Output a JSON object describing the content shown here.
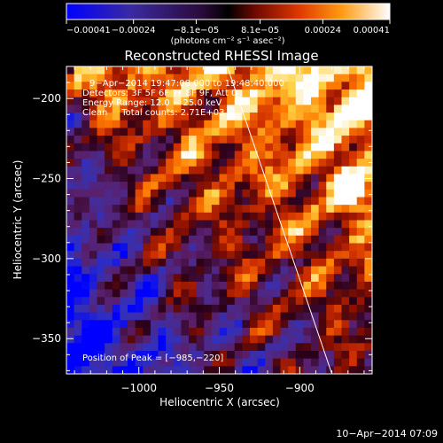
{
  "chart_data": {
    "type": "heatmap",
    "title": "Reconstructed RHESSI Image",
    "xlabel": "Heliocentric X (arcsec)",
    "ylabel": "Heliocentric Y (arcsec)",
    "xlim": [
      -1045,
      -855
    ],
    "ylim": [
      -372,
      -180
    ],
    "x_ticks": [
      -1000,
      -950,
      -900
    ],
    "x_tick_labels": [
      "−1000",
      "−950",
      "−900"
    ],
    "y_ticks": [
      -200,
      -250,
      -300,
      -350
    ],
    "y_tick_labels": [
      "−200",
      "−250",
      "−300",
      "−350"
    ],
    "colorbar": {
      "min": -0.00041,
      "max": 0.00041,
      "ticks": [
        -0.00041,
        -0.00024,
        -8.1e-05,
        8.1e-05,
        0.00024,
        0.00041
      ],
      "tick_labels": [
        "−0.00041",
        "−0.00024",
        "−8.1e−05",
        "8.1e−05",
        "0.00024",
        "0.00041"
      ],
      "units": "(photons cm⁻² s⁻¹ asec⁻²)"
    },
    "annotations": [
      "9−Apr−2014 19:47:08.000 to 19:48:40.000",
      "Detectors: 3F 5F 6F 7F 8F 9F, Att 0",
      "Energy Range: 12.0 − 25.0 keV",
      "Clean     Total counts: 2.71E+03",
      "Position of Peak = [−985,−220]"
    ],
    "peak": [
      -985,
      -220
    ],
    "limb_line": [
      [
        -945,
        -180
      ],
      [
        -880,
        -372
      ]
    ],
    "colors": {
      "background": "#000000",
      "limb_line": "#ffffff",
      "colormap": [
        "#0000ff",
        "#3030c0",
        "#4a2a8e",
        "#5a1f6a",
        "#2a0018",
        "#8a1000",
        "#d03000",
        "#ff7a00",
        "#ffd040",
        "#ffffff"
      ]
    }
  },
  "footer": {
    "timestamp": "10−Apr−2014 07:09"
  }
}
